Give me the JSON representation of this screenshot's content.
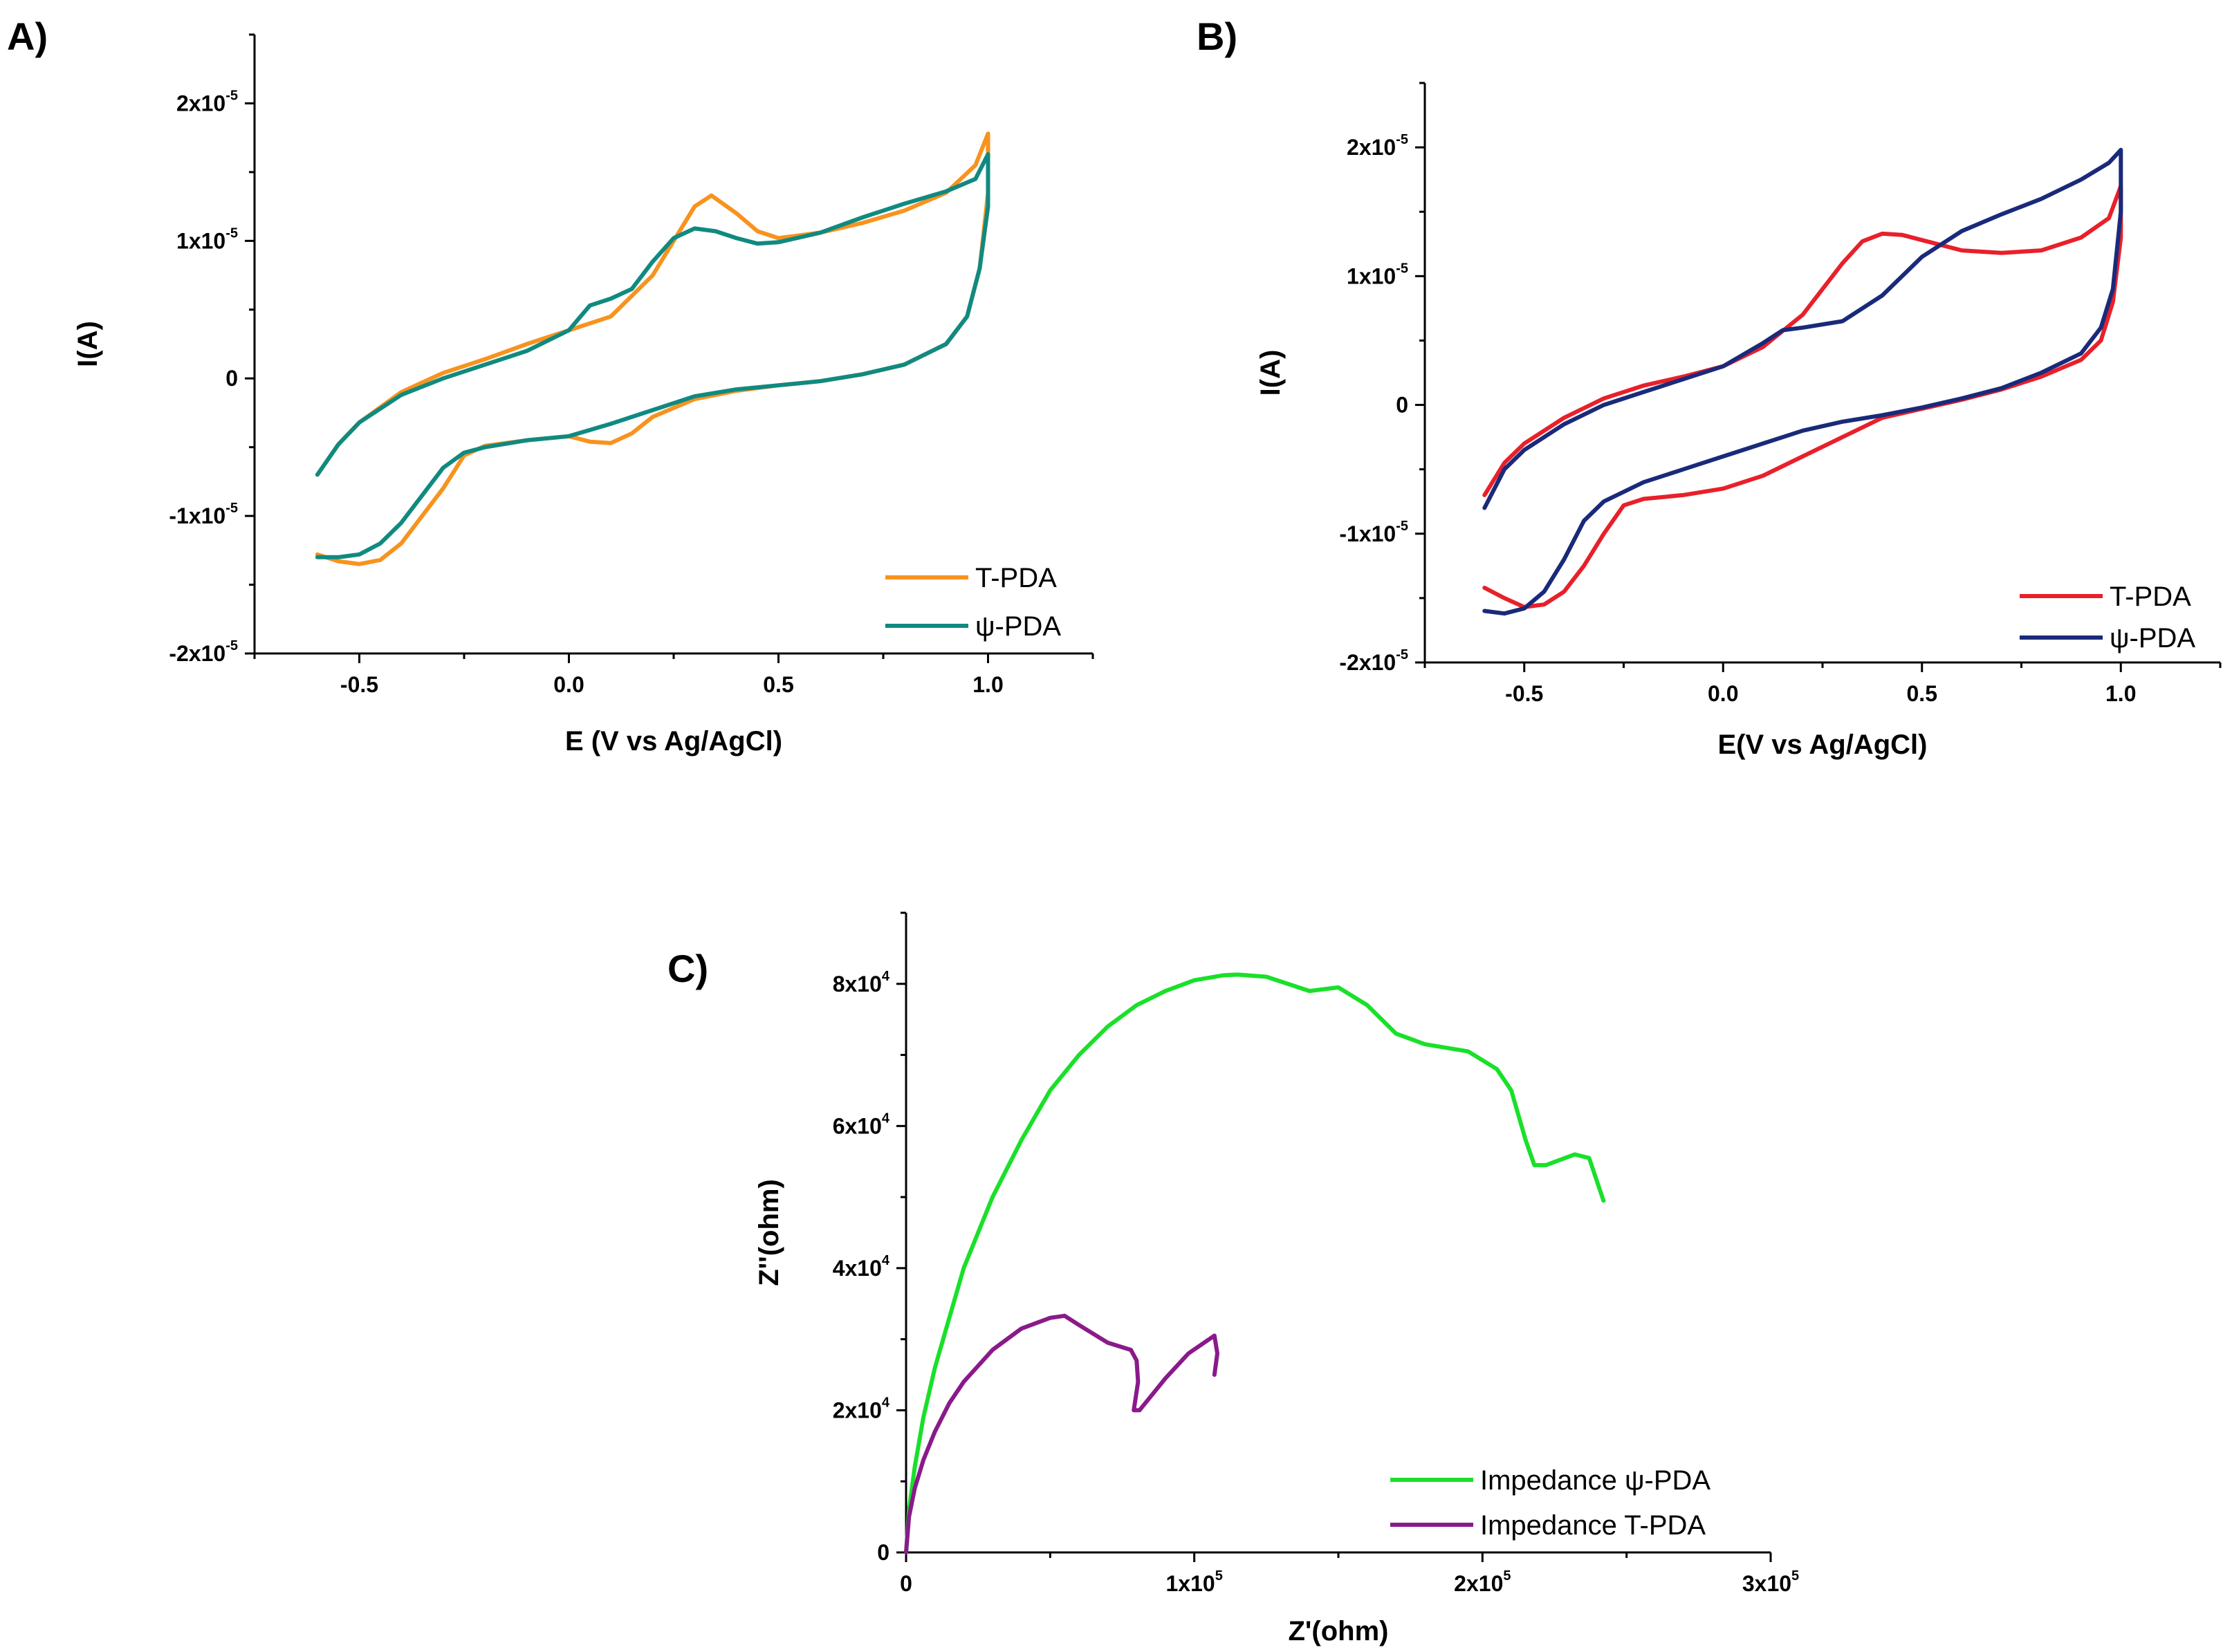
{
  "chart_data": [
    {
      "id": "A",
      "type": "line",
      "panel_label": "A)",
      "xlabel": "E (V vs Ag/AgCl)",
      "ylabel": "I(A)",
      "xlim": [
        -0.75,
        1.25
      ],
      "ylim": [
        -2e-05,
        2.5e-05
      ],
      "xticks": [
        {
          "value": -0.5,
          "label": "-0.5"
        },
        {
          "value": 0.0,
          "label": "0.0"
        },
        {
          "value": 0.5,
          "label": "0.5"
        },
        {
          "value": 1.0,
          "label": "1.0"
        }
      ],
      "yticks": [
        {
          "value": 2e-05,
          "label": "2x10",
          "sup": "-5"
        },
        {
          "value": 1e-05,
          "label": "1x10",
          "sup": "-5"
        },
        {
          "value": 0,
          "label": "0",
          "sup": ""
        },
        {
          "value": -1e-05,
          "label": "-1x10",
          "sup": "-5"
        },
        {
          "value": -2e-05,
          "label": "-2x10",
          "sup": "-5"
        }
      ],
      "legend_position": "bottom-right",
      "series": [
        {
          "name": "T-PDA",
          "color": "#f7931e",
          "x": [
            -0.6,
            -0.55,
            -0.5,
            -0.4,
            -0.3,
            -0.2,
            -0.1,
            0.0,
            0.1,
            0.2,
            0.25,
            0.3,
            0.34,
            0.4,
            0.45,
            0.5,
            0.6,
            0.7,
            0.8,
            0.9,
            0.97,
            1.0,
            1.0,
            0.98,
            0.95,
            0.9,
            0.8,
            0.7,
            0.6,
            0.5,
            0.4,
            0.3,
            0.2,
            0.15,
            0.1,
            0.05,
            0.0,
            -0.1,
            -0.2,
            -0.25,
            -0.3,
            -0.35,
            -0.4,
            -0.45,
            -0.5,
            -0.55,
            -0.6
          ],
          "y": [
            -7e-06,
            -4.8e-06,
            -3.2e-06,
            -1e-06,
            4e-07,
            1.4e-06,
            2.5e-06,
            3.5e-06,
            4.5e-06,
            7.5e-06,
            1e-05,
            1.25e-05,
            1.33e-05,
            1.2e-05,
            1.07e-05,
            1.02e-05,
            1.06e-05,
            1.13e-05,
            1.22e-05,
            1.35e-05,
            1.55e-05,
            1.78e-05,
            1.35e-05,
            8e-06,
            4.5e-06,
            2.5e-06,
            1e-06,
            3e-07,
            -2e-07,
            -5e-07,
            -9e-07,
            -1.5e-06,
            -2.8e-06,
            -4e-06,
            -4.7e-06,
            -4.6e-06,
            -4.2e-06,
            -4.5e-06,
            -4.9e-06,
            -5.6e-06,
            -8e-06,
            -1e-05,
            -1.2e-05,
            -1.32e-05,
            -1.35e-05,
            -1.33e-05,
            -1.28e-05
          ]
        },
        {
          "name": "ψ-PDA",
          "color": "#108a80",
          "x": [
            -0.6,
            -0.55,
            -0.5,
            -0.4,
            -0.3,
            -0.2,
            -0.1,
            0.0,
            0.05,
            0.1,
            0.15,
            0.2,
            0.25,
            0.3,
            0.35,
            0.4,
            0.45,
            0.5,
            0.6,
            0.7,
            0.8,
            0.9,
            0.97,
            1.0,
            1.0,
            0.98,
            0.95,
            0.9,
            0.8,
            0.7,
            0.6,
            0.5,
            0.4,
            0.3,
            0.2,
            0.1,
            0.0,
            -0.1,
            -0.2,
            -0.25,
            -0.3,
            -0.35,
            -0.4,
            -0.45,
            -0.5,
            -0.55,
            -0.6
          ],
          "y": [
            -7e-06,
            -4.8e-06,
            -3.2e-06,
            -1.2e-06,
            0,
            1e-06,
            2e-06,
            3.5e-06,
            5.3e-06,
            5.8e-06,
            6.5e-06,
            8.5e-06,
            1.02e-05,
            1.09e-05,
            1.07e-05,
            1.02e-05,
            9.8e-06,
            9.9e-06,
            1.06e-05,
            1.17e-05,
            1.27e-05,
            1.36e-05,
            1.45e-05,
            1.63e-05,
            1.25e-05,
            8e-06,
            4.5e-06,
            2.5e-06,
            1e-06,
            3e-07,
            -2e-07,
            -5e-07,
            -8e-07,
            -1.3e-06,
            -2.3e-06,
            -3.3e-06,
            -4.2e-06,
            -4.5e-06,
            -5e-06,
            -5.4e-06,
            -6.5e-06,
            -8.5e-06,
            -1.05e-05,
            -1.2e-05,
            -1.28e-05,
            -1.3e-05,
            -1.3e-05
          ]
        }
      ]
    },
    {
      "id": "B",
      "type": "line",
      "panel_label": "B)",
      "xlabel": "E(V vs Ag/AgCl)",
      "ylabel": "I(A)",
      "xlim": [
        -0.75,
        1.25
      ],
      "ylim": [
        -2e-05,
        2.5e-05
      ],
      "xticks": [
        {
          "value": -0.5,
          "label": "-0.5"
        },
        {
          "value": 0.0,
          "label": "0.0"
        },
        {
          "value": 0.5,
          "label": "0.5"
        },
        {
          "value": 1.0,
          "label": "1.0"
        }
      ],
      "yticks": [
        {
          "value": 2e-05,
          "label": "2x10",
          "sup": "-5"
        },
        {
          "value": 1e-05,
          "label": "1x10",
          "sup": "-5"
        },
        {
          "value": 0,
          "label": "0",
          "sup": ""
        },
        {
          "value": -1e-05,
          "label": "-1x10",
          "sup": "-5"
        },
        {
          "value": -2e-05,
          "label": "-2x10",
          "sup": "-5"
        }
      ],
      "legend_position": "bottom-right",
      "series": [
        {
          "name": "T-PDA",
          "color": "#e8202a",
          "x": [
            -0.6,
            -0.55,
            -0.5,
            -0.4,
            -0.3,
            -0.2,
            -0.1,
            0.0,
            0.1,
            0.2,
            0.3,
            0.35,
            0.4,
            0.45,
            0.5,
            0.6,
            0.7,
            0.8,
            0.9,
            0.97,
            1.0,
            1.0,
            0.98,
            0.95,
            0.9,
            0.8,
            0.7,
            0.6,
            0.5,
            0.4,
            0.3,
            0.2,
            0.1,
            0.0,
            -0.1,
            -0.2,
            -0.25,
            -0.3,
            -0.35,
            -0.4,
            -0.45,
            -0.5,
            -0.55,
            -0.6
          ],
          "y": [
            -7e-06,
            -4.5e-06,
            -3e-06,
            -1e-06,
            5e-07,
            1.5e-06,
            2.2e-06,
            3e-06,
            4.5e-06,
            7e-06,
            1.1e-05,
            1.27e-05,
            1.33e-05,
            1.32e-05,
            1.28e-05,
            1.2e-05,
            1.18e-05,
            1.2e-05,
            1.3e-05,
            1.45e-05,
            1.7e-05,
            1.3e-05,
            8e-06,
            5e-06,
            3.5e-06,
            2.2e-06,
            1.2e-06,
            4e-07,
            -3e-07,
            -1e-06,
            -2.5e-06,
            -4e-06,
            -5.5e-06,
            -6.5e-06,
            -7e-06,
            -7.3e-06,
            -7.8e-06,
            -1e-05,
            -1.25e-05,
            -1.45e-05,
            -1.55e-05,
            -1.57e-05,
            -1.5e-05,
            -1.42e-05
          ]
        },
        {
          "name": "ψ-PDA",
          "color": "#1a2a7a",
          "x": [
            -0.6,
            -0.55,
            -0.5,
            -0.4,
            -0.3,
            -0.2,
            -0.1,
            0.0,
            0.1,
            0.15,
            0.2,
            0.3,
            0.4,
            0.5,
            0.6,
            0.7,
            0.8,
            0.9,
            0.97,
            1.0,
            1.0,
            0.98,
            0.95,
            0.9,
            0.8,
            0.7,
            0.6,
            0.5,
            0.4,
            0.3,
            0.2,
            0.1,
            0.0,
            -0.1,
            -0.2,
            -0.3,
            -0.35,
            -0.4,
            -0.45,
            -0.5,
            -0.55,
            -0.6
          ],
          "y": [
            -8e-06,
            -5e-06,
            -3.5e-06,
            -1.5e-06,
            0,
            1e-06,
            2e-06,
            3e-06,
            4.8e-06,
            5.8e-06,
            6e-06,
            6.5e-06,
            8.5e-06,
            1.15e-05,
            1.35e-05,
            1.48e-05,
            1.6e-05,
            1.75e-05,
            1.88e-05,
            1.98e-05,
            1.5e-05,
            9e-06,
            6e-06,
            4e-06,
            2.5e-06,
            1.3e-06,
            5e-07,
            -2e-07,
            -8e-07,
            -1.3e-06,
            -2e-06,
            -3e-06,
            -4e-06,
            -5e-06,
            -6e-06,
            -7.5e-06,
            -9e-06,
            -1.2e-05,
            -1.45e-05,
            -1.58e-05,
            -1.62e-05,
            -1.6e-05
          ]
        }
      ]
    },
    {
      "id": "C",
      "type": "line",
      "panel_label": "C)",
      "xlabel": "Z'(ohm)",
      "ylabel": "Z''(ohm)",
      "xlim": [
        0,
        300000
      ],
      "ylim": [
        0,
        90000
      ],
      "xticks": [
        {
          "value": 0,
          "label": "0",
          "sup": ""
        },
        {
          "value": 100000,
          "label": "1x10",
          "sup": "5"
        },
        {
          "value": 200000,
          "label": "2x10",
          "sup": "5"
        },
        {
          "value": 300000,
          "label": "3x10",
          "sup": "5"
        }
      ],
      "yticks": [
        {
          "value": 0,
          "label": "0",
          "sup": ""
        },
        {
          "value": 20000,
          "label": "2x10",
          "sup": "4"
        },
        {
          "value": 40000,
          "label": "4x10",
          "sup": "4"
        },
        {
          "value": 60000,
          "label": "6x10",
          "sup": "4"
        },
        {
          "value": 80000,
          "label": "8x10",
          "sup": "4"
        }
      ],
      "legend_position": "bottom-right",
      "series": [
        {
          "name": "Impedance ψ-PDA",
          "color": "#19e02a",
          "x": [
            0,
            1000,
            3000,
            6000,
            10000,
            15000,
            20000,
            30000,
            40000,
            50000,
            60000,
            70000,
            80000,
            90000,
            100000,
            110000,
            115000,
            125000,
            140000,
            150000,
            160000,
            170000,
            180000,
            195000,
            205000,
            210000,
            215000,
            218000,
            222000,
            232000,
            237000,
            242000
          ],
          "y": [
            0,
            6000,
            12000,
            19000,
            26000,
            33000,
            40000,
            50000,
            58000,
            65000,
            70000,
            74000,
            77000,
            79000,
            80500,
            81200,
            81300,
            81000,
            79000,
            79500,
            77000,
            73000,
            71500,
            70500,
            68000,
            65000,
            58000,
            54500,
            54500,
            56000,
            55500,
            49500
          ]
        },
        {
          "name": "Impedance T-PDA",
          "color": "#8a1a8a",
          "x": [
            0,
            1000,
            3000,
            6000,
            10000,
            15000,
            20000,
            30000,
            40000,
            50000,
            55000,
            60000,
            70000,
            78000,
            80000,
            80500,
            79000,
            81000,
            90000,
            98000,
            107000,
            108000,
            107000
          ],
          "y": [
            0,
            5000,
            9000,
            13000,
            17000,
            21000,
            24000,
            28500,
            31500,
            33000,
            33300,
            32000,
            29500,
            28500,
            27000,
            24000,
            20000,
            20000,
            24500,
            28000,
            30500,
            28000,
            25000
          ]
        }
      ]
    }
  ]
}
